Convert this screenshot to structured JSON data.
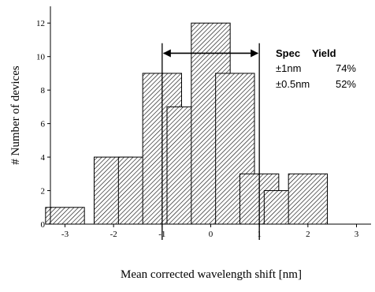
{
  "chart_data": {
    "type": "bar",
    "bar_width": 0.8,
    "x": [
      -3,
      -2,
      -1.5,
      -1,
      -0.5,
      0,
      0.5,
      1,
      1.5,
      2
    ],
    "values": [
      1,
      4,
      4,
      9,
      7,
      12,
      9,
      3,
      2,
      3
    ],
    "xlim": [
      -3.3,
      3.3
    ],
    "ylim": [
      0,
      13
    ],
    "xticks": [
      -3,
      -2,
      -1,
      0,
      1,
      2,
      3
    ],
    "xtick_labels": [
      "-3",
      "-2",
      "-1",
      "0",
      "1",
      "2",
      "3"
    ],
    "yticks": [
      0,
      2,
      4,
      6,
      8,
      10,
      12
    ],
    "ytick_labels": [
      "0",
      "2",
      "4",
      "6",
      "8",
      "10",
      "12"
    ],
    "xlabel": "Mean corrected wavelength shift [nm]",
    "ylabel": "# Number of devices",
    "bar_fill": "hatched",
    "spec_lines": [
      -1,
      1
    ],
    "spec_line_top": 10.8,
    "arrow_y": 10.2,
    "annotation": {
      "headers": [
        "Spec",
        "Yield"
      ],
      "rows": [
        [
          "±1nm",
          "74%"
        ],
        [
          "±0.5nm",
          "52%"
        ]
      ]
    }
  }
}
